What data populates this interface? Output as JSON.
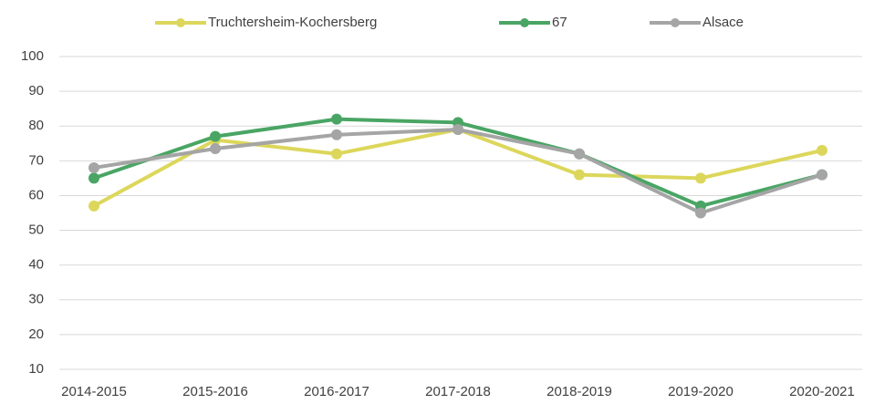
{
  "chart_data": {
    "type": "line",
    "categories": [
      "2014-2015",
      "2015-2016",
      "2016-2017",
      "2017-2018",
      "2018-2019",
      "2019-2020",
      "2020-2021"
    ],
    "series": [
      {
        "name": "Truchtersheim-Kochersberg",
        "color": "#dcd75b",
        "values": [
          57,
          76,
          72,
          79,
          66,
          65,
          73
        ]
      },
      {
        "name": "67",
        "color": "#4aa564",
        "values": [
          65,
          77,
          82,
          81,
          72,
          57,
          66
        ]
      },
      {
        "name": "Alsace",
        "color": "#a5a5a5",
        "values": [
          68,
          73.5,
          77.5,
          79,
          72,
          55,
          66
        ]
      }
    ],
    "ylim": [
      10,
      100
    ],
    "yticks": [
      10,
      20,
      30,
      40,
      50,
      60,
      70,
      80,
      90,
      100
    ],
    "grid": true,
    "legend": "top"
  }
}
